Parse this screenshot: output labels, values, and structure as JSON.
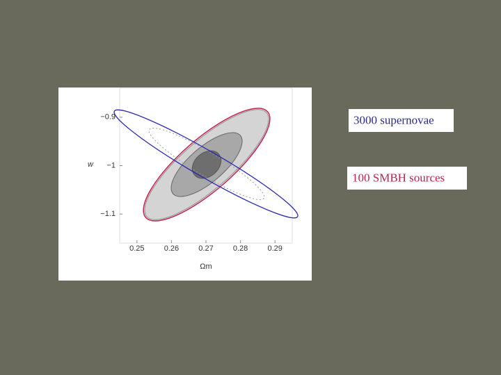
{
  "chart_data": {
    "type": "contour",
    "x_label": "Ωm",
    "y_label": "w",
    "xlim": [
      0.245,
      0.295
    ],
    "ylim": [
      -1.16,
      -0.84
    ],
    "xticks": [
      0.25,
      0.26,
      0.27,
      0.28,
      0.29
    ],
    "yticks": [
      {
        "value": -0.9,
        "label": "−0.9"
      },
      {
        "value": -1,
        "label": "−1"
      },
      {
        "value": -1.1,
        "label": "−1.1"
      }
    ],
    "legend": [
      {
        "name": "3000 supernovae",
        "color": "#2a2a8c"
      },
      {
        "name": "100 SMBH sources",
        "color": "#c0204a"
      }
    ]
  }
}
